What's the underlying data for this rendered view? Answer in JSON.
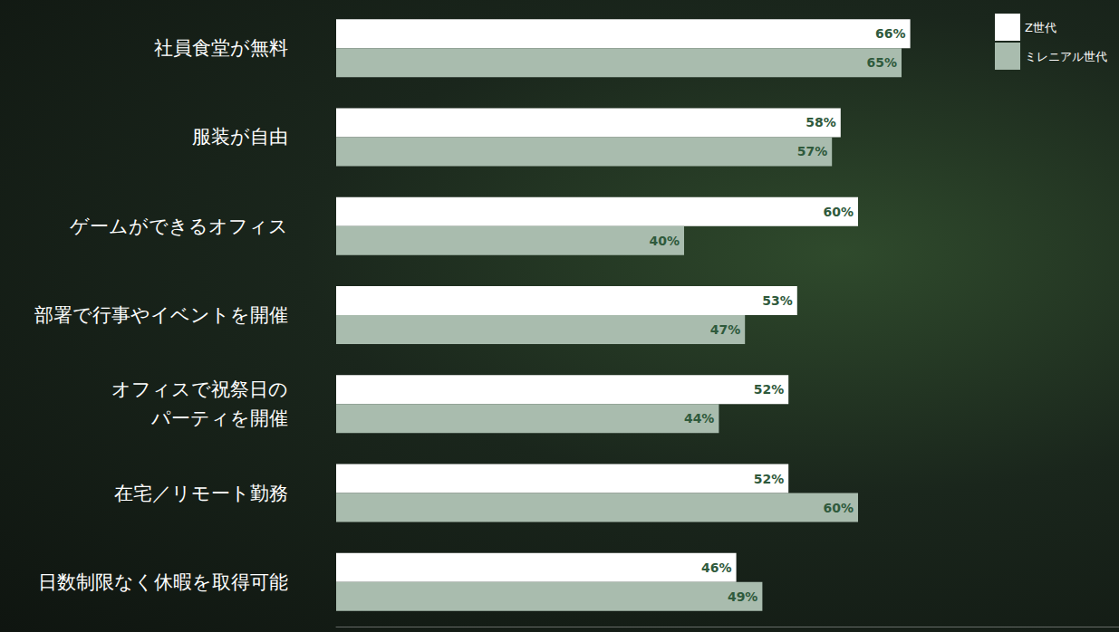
{
  "chart_data": {
    "type": "bar",
    "orientation": "horizontal",
    "categories": [
      "社員食堂が無料",
      "服装が自由",
      "ゲームができるオフィス",
      "部署で行事やイベントを開催",
      "オフィスで祝祭日の\nパーティを開催",
      "在宅／リモート勤務",
      "日数制限なく休暇を取得可能"
    ],
    "series": [
      {
        "name": "Z世代",
        "color": "#ffffff",
        "values": [
          66,
          58,
          60,
          53,
          52,
          52,
          46
        ],
        "value_labels": [
          "66%",
          "58%",
          "60%",
          "53%",
          "52%",
          "52%",
          "46%"
        ]
      },
      {
        "name": "ミレニアル世代",
        "color": "#a9bcae",
        "values": [
          65,
          57,
          40,
          47,
          44,
          60,
          49
        ],
        "value_labels": [
          "65%",
          "57%",
          "40%",
          "47%",
          "44%",
          "60%",
          "49%"
        ]
      }
    ],
    "xlim": [
      0,
      90
    ],
    "grid": false,
    "legend": "top-right",
    "data_labels": true,
    "tick_labels": "y"
  }
}
